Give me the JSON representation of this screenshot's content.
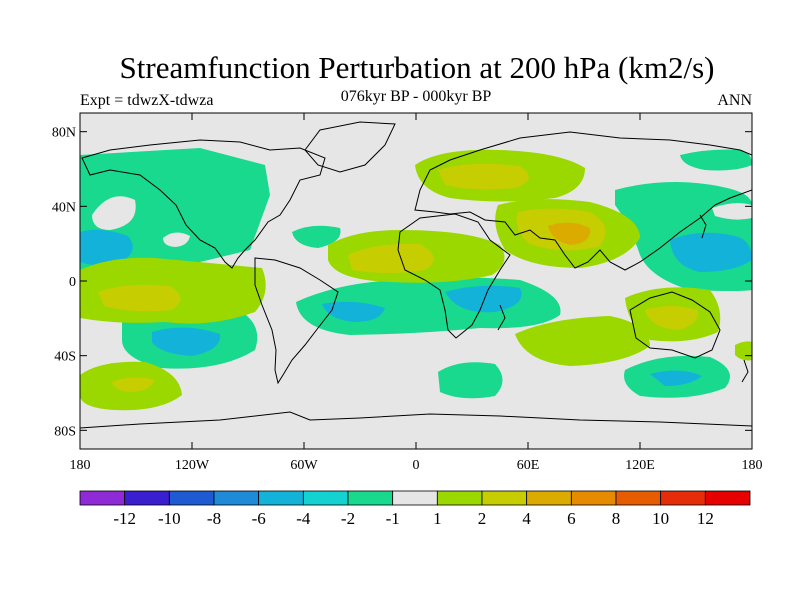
{
  "title": "Streamfunction Perturbation at 200 hPa (km2/s)",
  "left_string": "Expt = tdwzX-tdwza",
  "center_string": "076kyr BP - 000kyr BP",
  "right_string": "ANN",
  "map": {
    "projection": "cylindrical equidistant",
    "lon_range": [
      -180,
      180
    ],
    "lat_range": [
      -90,
      90
    ],
    "background_color": "#e6e6e6",
    "x_ticks": [
      "180",
      "120W",
      "60W",
      "0",
      "60E",
      "120E",
      "180"
    ],
    "y_ticks": [
      "80N",
      "40N",
      "0",
      "40S",
      "80S"
    ]
  },
  "colorbar": {
    "colors": [
      "#8f2bd6",
      "#3a1fd0",
      "#1e5ad2",
      "#1e8ad8",
      "#13b3d9",
      "#14d2d2",
      "#19d98e",
      "#e6e6e6",
      "#9ad800",
      "#c6cd00",
      "#dcab00",
      "#e68a00",
      "#e65c00",
      "#e62d0a",
      "#e60000"
    ],
    "labels": [
      "-12",
      "-10",
      "-8",
      "-6",
      "-4",
      "-2",
      "-1",
      "1",
      "2",
      "4",
      "6",
      "8",
      "10",
      "12"
    ]
  }
}
